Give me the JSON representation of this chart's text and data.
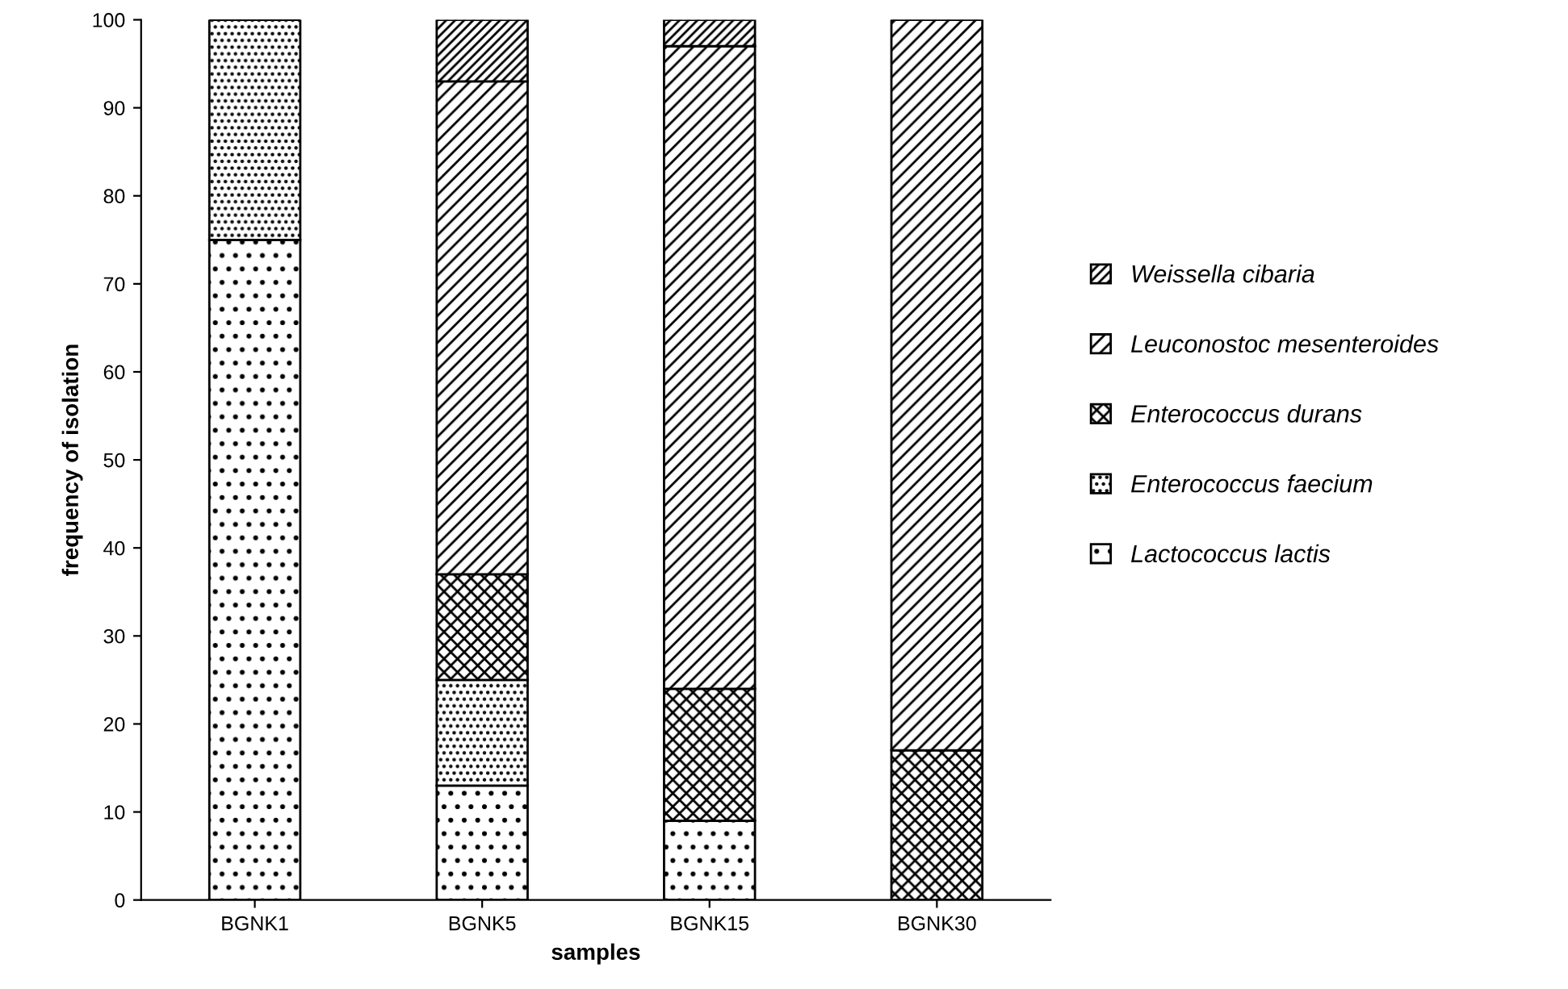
{
  "chart_data": {
    "type": "bar",
    "stacked": true,
    "xlabel": "samples",
    "ylabel": "frequency of isolation",
    "categories": [
      "BGNK1",
      "BGNK5",
      "BGNK15",
      "BGNK30"
    ],
    "series": [
      {
        "name": "Lactococcus lactis",
        "color": "#000000",
        "values": [
          75,
          13,
          9,
          0
        ]
      },
      {
        "name": "Enterococcus faecium",
        "color": "#000000",
        "values": [
          25,
          12,
          0,
          0
        ]
      },
      {
        "name": "Enterococcus durans",
        "color": "#000000",
        "values": [
          0,
          12,
          15,
          17
        ]
      },
      {
        "name": "Leuconostoc mesenteroides",
        "color": "#000000",
        "values": [
          0,
          56,
          73,
          83
        ]
      },
      {
        "name": "Weissella cibaria",
        "color": "#000000",
        "values": [
          0,
          7,
          3,
          0
        ]
      }
    ],
    "ylim": [
      0,
      100
    ],
    "yticks": [
      0,
      10,
      20,
      30,
      40,
      50,
      60,
      70,
      80,
      90,
      100
    ],
    "grid": false,
    "legend": "right"
  }
}
